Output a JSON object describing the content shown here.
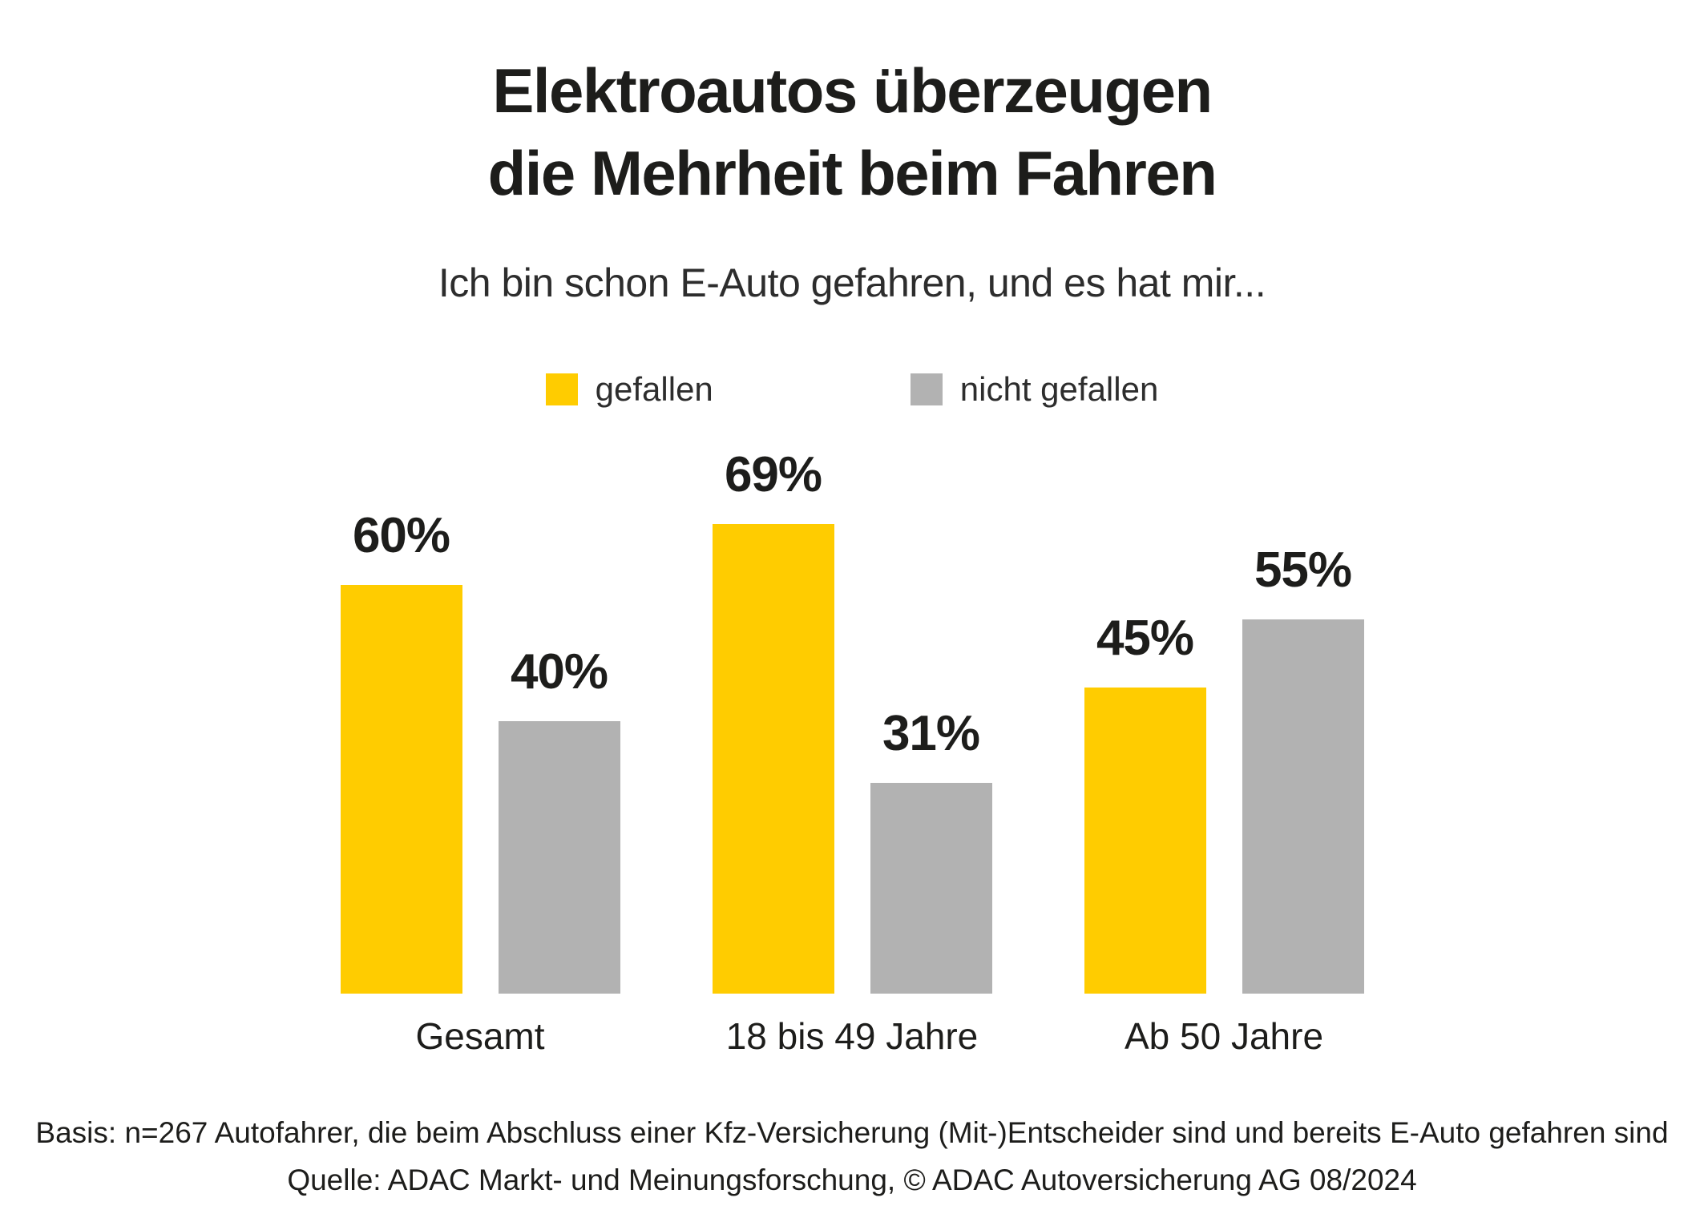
{
  "title": {
    "line1": "Elektroautos überzeugen",
    "line2": "die Mehrheit beim Fahren"
  },
  "subtitle": "Ich bin schon E-Auto gefahren, und es hat mir...",
  "chart_data": {
    "type": "bar",
    "categories": [
      "Gesamt",
      "18 bis 49 Jahre",
      "Ab 50 Jahre"
    ],
    "series": [
      {
        "name": "gefallen",
        "color": "#FFCC00",
        "values": [
          60,
          69,
          45
        ]
      },
      {
        "name": "nicht gefallen",
        "color": "#B2B2B2",
        "values": [
          40,
          31,
          55
        ]
      }
    ],
    "value_suffix": "%",
    "ylim": [
      0,
      100
    ],
    "grid": false,
    "legend_position": "top",
    "value_labels": true,
    "background": "#FFFFFF",
    "text_color": "#1D1D1B"
  },
  "footer": {
    "basis": "Basis: n=267 Autofahrer, die beim Abschluss einer Kfz-Versicherung (Mit-)Entscheider sind und bereits E-Auto gefahren sind",
    "quelle": "Quelle: ADAC Markt- und Meinungsforschung, © ADAC Autoversicherung AG 08/2024"
  }
}
